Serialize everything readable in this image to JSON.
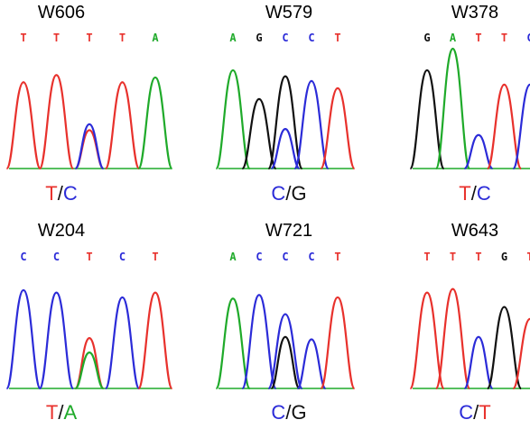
{
  "colors": {
    "T": "#e8312c",
    "C": "#2b2bd8",
    "A": "#1faa2a",
    "G": "#111111"
  },
  "panels": [
    {
      "id": "W606",
      "bases": [
        "T",
        "T",
        "T",
        "T",
        "A"
      ],
      "genotype": [
        {
          "base": "T",
          "text": "T"
        },
        {
          "base": "sep",
          "text": "/"
        },
        {
          "base": "C",
          "text": "C"
        }
      ],
      "peaks": [
        {
          "base": "T",
          "pos": 0,
          "h": 0.72
        },
        {
          "base": "T",
          "pos": 1,
          "h": 0.78
        },
        {
          "base": "T",
          "pos": 2,
          "h": 0.32
        },
        {
          "base": "C",
          "pos": 2,
          "h": 0.37
        },
        {
          "base": "T",
          "pos": 3,
          "h": 0.72
        },
        {
          "base": "A",
          "pos": 4,
          "h": 0.76
        }
      ]
    },
    {
      "id": "W579",
      "bases": [
        "A",
        "G",
        "C",
        "C",
        "T"
      ],
      "genotype": [
        {
          "base": "C",
          "text": "C"
        },
        {
          "base": "sep",
          "text": "/"
        },
        {
          "base": "G",
          "text": "G"
        }
      ],
      "peaks": [
        {
          "base": "A",
          "pos": 0,
          "h": 0.82
        },
        {
          "base": "G",
          "pos": 1,
          "h": 0.58
        },
        {
          "base": "G",
          "pos": 2,
          "h": 0.77
        },
        {
          "base": "C",
          "pos": 2,
          "h": 0.33
        },
        {
          "base": "C",
          "pos": 3,
          "h": 0.73
        },
        {
          "base": "T",
          "pos": 4,
          "h": 0.67
        }
      ]
    },
    {
      "id": "W378",
      "bases": [
        "G",
        "A",
        "T",
        "T",
        "C"
      ],
      "genotype": [
        {
          "base": "T",
          "text": "T"
        },
        {
          "base": "sep",
          "text": "/"
        },
        {
          "base": "C",
          "text": "C"
        }
      ],
      "peaks": [
        {
          "base": "G",
          "pos": 0,
          "h": 0.82
        },
        {
          "base": "A",
          "pos": 1,
          "h": 1.0
        },
        {
          "base": "C",
          "pos": 2,
          "h": 0.28
        },
        {
          "base": "T",
          "pos": 3,
          "h": 0.7
        },
        {
          "base": "C",
          "pos": 4,
          "h": 0.7
        }
      ]
    },
    {
      "id": "W204",
      "bases": [
        "C",
        "C",
        "T",
        "C",
        "T"
      ],
      "genotype": [
        {
          "base": "T",
          "text": "T"
        },
        {
          "base": "sep",
          "text": "/"
        },
        {
          "base": "A",
          "text": "A"
        }
      ],
      "peaks": [
        {
          "base": "C",
          "pos": 0,
          "h": 0.82
        },
        {
          "base": "C",
          "pos": 1,
          "h": 0.8
        },
        {
          "base": "T",
          "pos": 2,
          "h": 0.42
        },
        {
          "base": "A",
          "pos": 2,
          "h": 0.3
        },
        {
          "base": "C",
          "pos": 3,
          "h": 0.76
        },
        {
          "base": "T",
          "pos": 4,
          "h": 0.8
        }
      ]
    },
    {
      "id": "W721",
      "bases": [
        "A",
        "C",
        "C",
        "C",
        "T"
      ],
      "genotype": [
        {
          "base": "C",
          "text": "C"
        },
        {
          "base": "sep",
          "text": "/"
        },
        {
          "base": "G",
          "text": "G"
        }
      ],
      "peaks": [
        {
          "base": "A",
          "pos": 0,
          "h": 0.75
        },
        {
          "base": "C",
          "pos": 1,
          "h": 0.78
        },
        {
          "base": "C",
          "pos": 2,
          "h": 0.62
        },
        {
          "base": "G",
          "pos": 2,
          "h": 0.43
        },
        {
          "base": "C",
          "pos": 3,
          "h": 0.41
        },
        {
          "base": "T",
          "pos": 4,
          "h": 0.76
        }
      ]
    },
    {
      "id": "W643",
      "bases": [
        "T",
        "T",
        "T",
        "G",
        "T"
      ],
      "genotype": [
        {
          "base": "C",
          "text": "C"
        },
        {
          "base": "sep",
          "text": "/"
        },
        {
          "base": "T",
          "text": "T"
        }
      ],
      "peaks": [
        {
          "base": "T",
          "pos": 0,
          "h": 0.8
        },
        {
          "base": "T",
          "pos": 1,
          "h": 0.83
        },
        {
          "base": "C",
          "pos": 2,
          "h": 0.43
        },
        {
          "base": "G",
          "pos": 3,
          "h": 0.68
        },
        {
          "base": "T",
          "pos": 4,
          "h": 0.58
        }
      ]
    }
  ]
}
